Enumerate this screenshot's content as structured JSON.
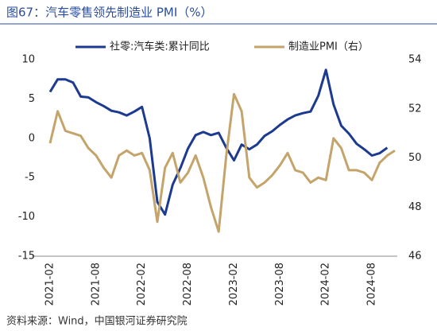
{
  "chart_data": {
    "type": "line",
    "title": "图67：汽车零售领先制造业 PMI（%）",
    "source": "资料来源：Wind，中国银河证券研究院",
    "categories": [
      "2021-02",
      null,
      null,
      null,
      null,
      null,
      "2021-08",
      null,
      null,
      null,
      null,
      null,
      "2022-02",
      null,
      null,
      null,
      null,
      null,
      "2022-08",
      null,
      null,
      null,
      null,
      null,
      "2023-02",
      null,
      null,
      null,
      null,
      null,
      "2023-08",
      null,
      null,
      null,
      null,
      null,
      "2024-02",
      null,
      null,
      null,
      null,
      null,
      "2024-08",
      null,
      null,
      null
    ],
    "series": [
      {
        "name": "社零:汽车类:累计同比",
        "color": "#1c3a8f",
        "axis": "y",
        "values": [
          5.9,
          7.5,
          7.5,
          7.1,
          5.3,
          5.2,
          4.6,
          4.1,
          3.5,
          3.3,
          2.9,
          3.4,
          4.0,
          0.0,
          -8.1,
          -9.7,
          -5.9,
          -3.8,
          -1.3,
          0.4,
          0.8,
          0.4,
          0.7,
          -1.2,
          -2.8,
          -0.8,
          -1.4,
          -0.8,
          0.3,
          0.9,
          1.7,
          2.4,
          2.9,
          3.2,
          3.4,
          5.4,
          8.7,
          4.3,
          1.6,
          0.6,
          -0.7,
          -1.4,
          -2.2,
          -1.9,
          -1.2,
          null
        ]
      },
      {
        "name": "制造业PMI（右）",
        "color": "#c4a46b",
        "axis": "y2",
        "values": [
          50.6,
          51.9,
          51.1,
          51.0,
          50.9,
          50.4,
          50.1,
          49.6,
          49.2,
          50.1,
          50.3,
          50.1,
          50.2,
          49.5,
          47.4,
          49.6,
          50.2,
          49.0,
          49.4,
          50.1,
          49.2,
          48.0,
          47.0,
          50.1,
          52.6,
          51.9,
          49.2,
          48.8,
          49.0,
          49.3,
          49.7,
          50.2,
          49.5,
          49.4,
          49.0,
          49.2,
          49.1,
          50.8,
          50.4,
          49.5,
          49.5,
          49.4,
          49.1,
          49.8,
          50.1,
          50.3
        ]
      }
    ],
    "ylim": [
      -15,
      10
    ],
    "yticks": [
      -15,
      -10,
      -5,
      0,
      5,
      10
    ],
    "y2lim": [
      46,
      54
    ],
    "y2ticks": [
      46,
      48,
      50,
      52,
      54
    ],
    "legend": "top"
  }
}
